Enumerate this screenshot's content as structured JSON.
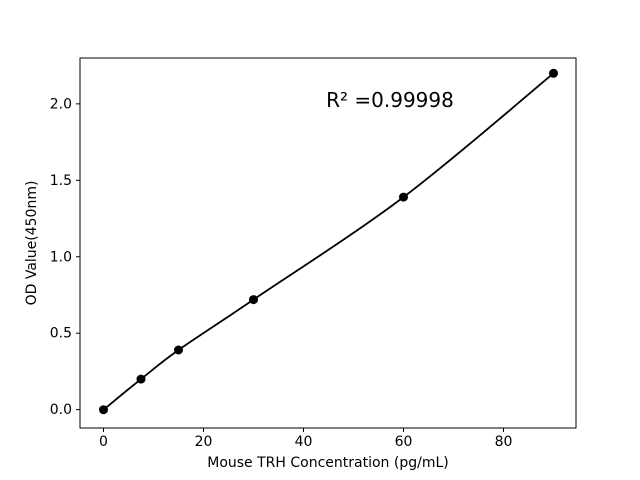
{
  "chart_data": {
    "type": "scatter",
    "subtype": "standard-curve-with-fit-line",
    "title": "",
    "xlabel": "Mouse TRH Concentration (pg/mL)",
    "ylabel": "OD Value(450nm)",
    "annotation": {
      "text": "R² =0.99998",
      "x": 57.3,
      "y": 1.98
    },
    "series": [
      {
        "name": "standards",
        "x": [
          0,
          7.5,
          15,
          30,
          60,
          90
        ],
        "y": [
          0.0,
          0.2,
          0.39,
          0.72,
          1.39,
          2.2
        ]
      }
    ],
    "fit_line_through_points": true,
    "xlim": [
      -4.7,
      94.5
    ],
    "ylim": [
      -0.12,
      2.3
    ],
    "x_ticks": [
      0,
      20,
      40,
      60,
      80
    ],
    "x_tick_labels": [
      "0",
      "20",
      "40",
      "60",
      "80"
    ],
    "y_ticks": [
      0.0,
      0.5,
      1.0,
      1.5,
      2.0
    ],
    "y_tick_labels": [
      "0.0",
      "0.5",
      "1.0",
      "1.5",
      "2.0"
    ],
    "grid": false,
    "legend": false,
    "colors": {
      "line": "#000000",
      "marker": "#000000",
      "text": "#000000",
      "spine": "#000000",
      "background": "#ffffff"
    }
  }
}
